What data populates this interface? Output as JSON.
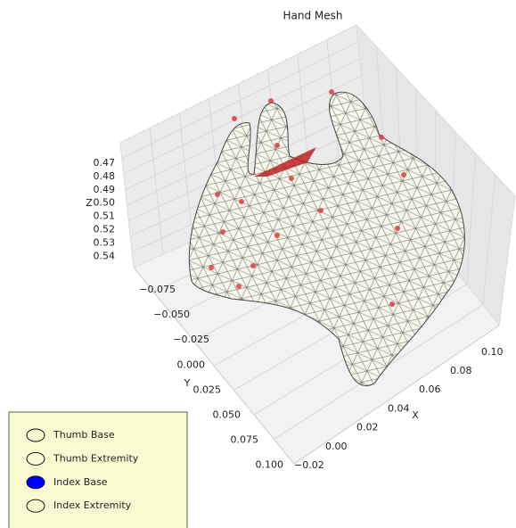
{
  "plot": {
    "title": "Hand Mesh",
    "axes": {
      "x": {
        "label": "X",
        "ticks": [
          "−0.02",
          "0.00",
          "0.02",
          "0.04",
          "0.06",
          "0.08",
          "0.10"
        ]
      },
      "y": {
        "label": "Y",
        "ticks": [
          "−0.075",
          "−0.050",
          "−0.025",
          "0.000",
          "0.025",
          "0.050",
          "0.075",
          "0.100"
        ]
      },
      "z": {
        "label": "Z",
        "ticks": [
          "0.47",
          "0.48",
          "0.49",
          "0.50",
          "0.51",
          "0.52",
          "0.53",
          "0.54"
        ]
      }
    }
  },
  "selector": {
    "options": [
      "Thumb Base",
      "Thumb Extremity",
      "Index Base",
      "Index Extremity"
    ],
    "selected": 2
  }
}
